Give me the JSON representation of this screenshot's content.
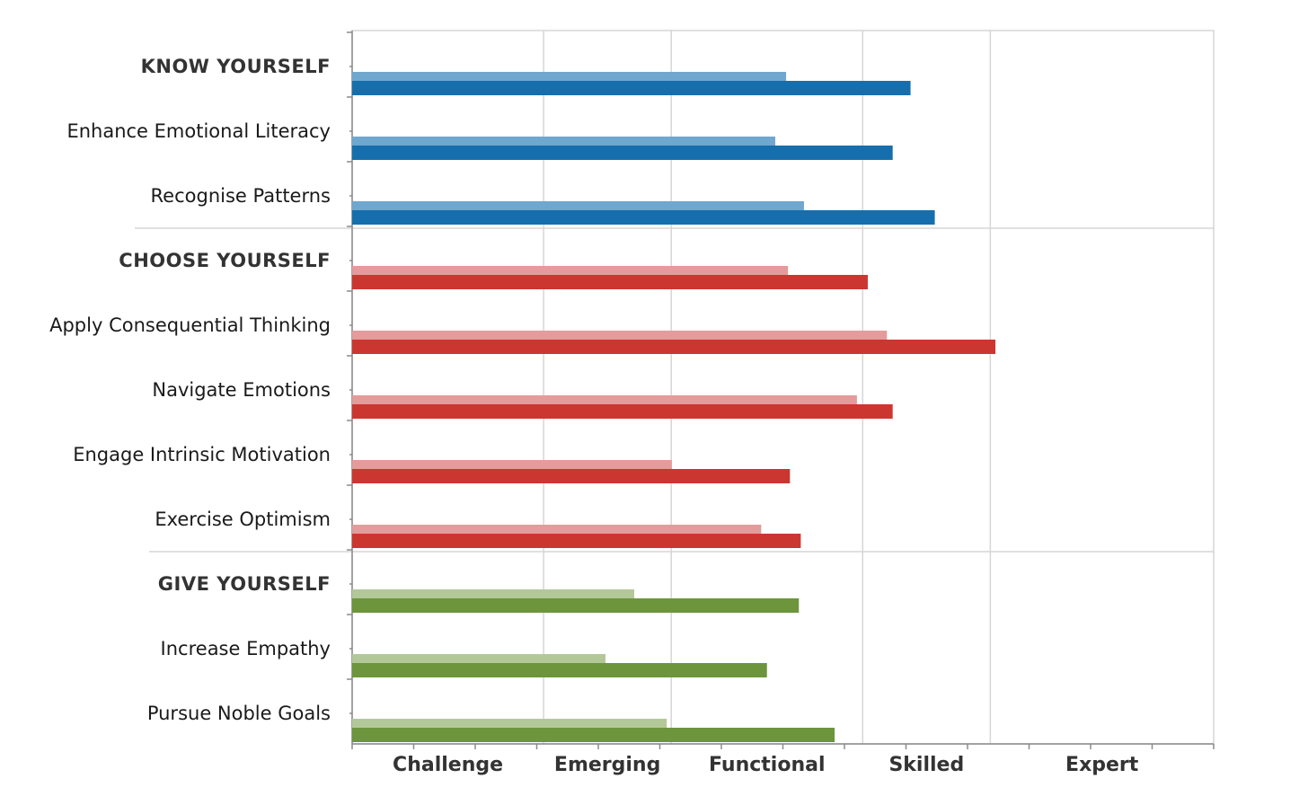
{
  "chart_data": {
    "type": "bar",
    "orientation": "horizontal",
    "x_bands": [
      "Challenge",
      "Emerging",
      "Functional",
      "Skilled",
      "Expert"
    ],
    "xlim": [
      0,
      135
    ],
    "grid": true,
    "colors": {
      "know_light": "#6fa7cf",
      "know_dark": "#166fac",
      "choose_light": "#e59b9b",
      "choose_dark": "#cc3631",
      "give_light": "#b3c898",
      "give_dark": "#6c953c"
    },
    "rows": [
      {
        "label": "KNOW YOURSELF",
        "section": true,
        "group": "know",
        "light": 68,
        "dark": 87.5
      },
      {
        "label": "Enhance Emotional Literacy",
        "group": "know",
        "light": 66.3,
        "dark": 84.7
      },
      {
        "label": "Recognise Patterns",
        "group": "know",
        "light": 70.8,
        "dark": 91.3
      },
      {
        "label": "CHOOSE YOURSELF",
        "section": true,
        "group": "choose",
        "light": 68.3,
        "dark": 80.8
      },
      {
        "label": "Apply Consequential Thinking",
        "group": "choose",
        "light": 83.8,
        "dark": 100.8
      },
      {
        "label": "Navigate Emotions",
        "group": "choose",
        "light": 79.1,
        "dark": 84.7
      },
      {
        "label": "Engage Intrinsic Motivation",
        "group": "choose",
        "light": 50.1,
        "dark": 68.6
      },
      {
        "label": "Exercise Optimism",
        "group": "choose",
        "light": 64.1,
        "dark": 70.3
      },
      {
        "label": "GIVE YOURSELF",
        "section": true,
        "group": "give",
        "light": 44.2,
        "dark": 70
      },
      {
        "label": "Increase Empathy",
        "group": "give",
        "light": 39.7,
        "dark": 65
      },
      {
        "label": "Pursue Noble Goals",
        "group": "give",
        "light": 49.3,
        "dark": 75.6
      }
    ]
  }
}
